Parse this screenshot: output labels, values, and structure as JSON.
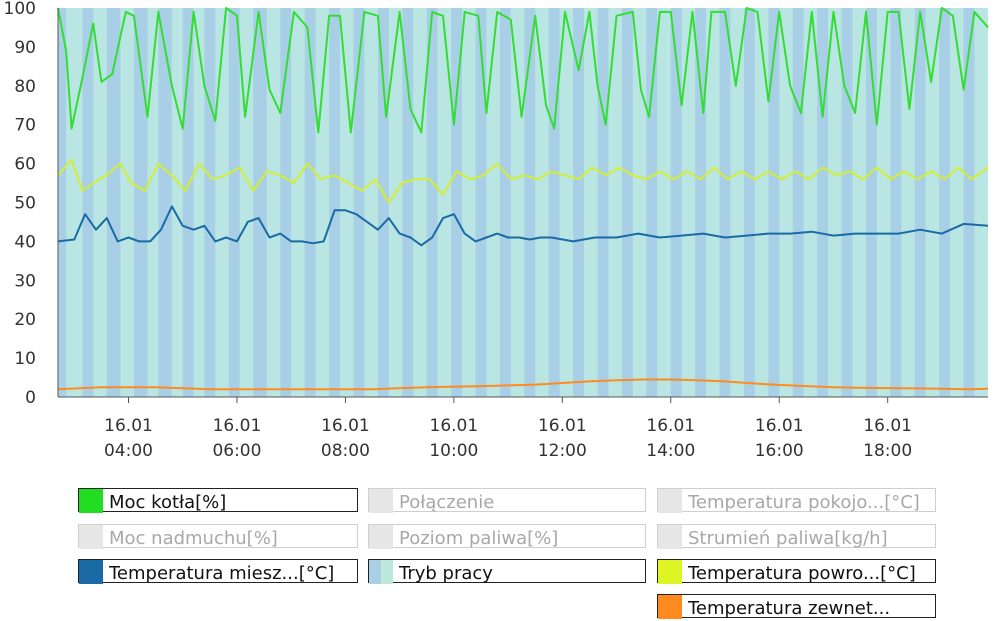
{
  "chart_data": {
    "type": "line",
    "ylim": [
      0,
      100
    ],
    "yticks": [
      0,
      10,
      20,
      30,
      40,
      50,
      60,
      70,
      80,
      90,
      100
    ],
    "xlim": [
      2.7,
      19.85
    ],
    "xticks": [
      {
        "x": 4,
        "date": "16.01",
        "time": "04:00"
      },
      {
        "x": 6,
        "date": "16.01",
        "time": "06:00"
      },
      {
        "x": 8,
        "date": "16.01",
        "time": "08:00"
      },
      {
        "x": 10,
        "date": "16.01",
        "time": "10:00"
      },
      {
        "x": 12,
        "date": "16.01",
        "time": "12:00"
      },
      {
        "x": 14,
        "date": "16.01",
        "time": "14:00"
      },
      {
        "x": 16,
        "date": "16.01",
        "time": "16:00"
      },
      {
        "x": 18,
        "date": "16.01",
        "time": "18:00"
      }
    ],
    "grid": false,
    "series": [
      {
        "name": "Moc kotła[%]",
        "color": "#33dd33",
        "x": [
          2.7,
          2.85,
          2.95,
          3.15,
          3.35,
          3.5,
          3.7,
          3.95,
          4.1,
          4.35,
          4.55,
          4.8,
          5.0,
          5.2,
          5.4,
          5.6,
          5.8,
          6.0,
          6.15,
          6.4,
          6.6,
          6.8,
          7.05,
          7.3,
          7.5,
          7.7,
          7.9,
          8.1,
          8.35,
          8.6,
          8.75,
          9.0,
          9.2,
          9.4,
          9.6,
          9.8,
          10.0,
          10.2,
          10.45,
          10.6,
          10.8,
          11.05,
          11.25,
          11.5,
          11.7,
          11.85,
          12.05,
          12.3,
          12.5,
          12.65,
          12.8,
          13.0,
          13.3,
          13.45,
          13.6,
          13.8,
          14.0,
          14.2,
          14.4,
          14.6,
          14.75,
          15.0,
          15.2,
          15.4,
          15.6,
          15.8,
          16.0,
          16.2,
          16.4,
          16.6,
          16.8,
          17.0,
          17.2,
          17.4,
          17.6,
          17.8,
          18.0,
          18.2,
          18.4,
          18.6,
          18.8,
          19.0,
          19.2,
          19.4,
          19.6,
          19.85
        ],
        "y": [
          100,
          89,
          69,
          82,
          96,
          81,
          83,
          99,
          98,
          72,
          99,
          80,
          69,
          99,
          80,
          71,
          100,
          98,
          72,
          99,
          79,
          73,
          99,
          95,
          68,
          98,
          98,
          68,
          99,
          98,
          72,
          99,
          74,
          68,
          99,
          98,
          70,
          99,
          98,
          73,
          99,
          97,
          72,
          98,
          75,
          69,
          99,
          84,
          99,
          80,
          70,
          98,
          99,
          79,
          72,
          99,
          99,
          75,
          99,
          73,
          99,
          99,
          80,
          100,
          99,
          76,
          99,
          80,
          73,
          99,
          72,
          99,
          80,
          73,
          99,
          70,
          99,
          99,
          74,
          99,
          81,
          100,
          98,
          79,
          99,
          95
        ]
      },
      {
        "name": "Temperatura miesz...[°C]",
        "color": "#1a6aa6",
        "x": [
          2.7,
          3.0,
          3.2,
          3.4,
          3.6,
          3.8,
          4.0,
          4.2,
          4.4,
          4.6,
          4.8,
          5.0,
          5.2,
          5.4,
          5.6,
          5.8,
          6.0,
          6.2,
          6.4,
          6.6,
          6.8,
          7.0,
          7.2,
          7.4,
          7.6,
          7.8,
          8.0,
          8.2,
          8.4,
          8.6,
          8.8,
          9.0,
          9.2,
          9.4,
          9.6,
          9.8,
          10.0,
          10.2,
          10.4,
          10.6,
          10.8,
          11.0,
          11.2,
          11.4,
          11.6,
          11.8,
          12.2,
          12.6,
          13.0,
          13.4,
          13.8,
          14.2,
          14.6,
          15.0,
          15.4,
          15.8,
          16.2,
          16.6,
          17.0,
          17.4,
          17.8,
          18.2,
          18.6,
          19.0,
          19.4,
          19.85
        ],
        "y": [
          40,
          40.5,
          47,
          43,
          46,
          40,
          41,
          40,
          40,
          43,
          49,
          44,
          43,
          44,
          40,
          41,
          40,
          45,
          46,
          41,
          42,
          40,
          40,
          39.5,
          40,
          48,
          48,
          47,
          45,
          43,
          46,
          42,
          41,
          39,
          41,
          46,
          47,
          42,
          40,
          41,
          42,
          41,
          41,
          40.5,
          41,
          41,
          40,
          41,
          41,
          42,
          41,
          41.5,
          42,
          41,
          41.5,
          42,
          42,
          42.5,
          41.5,
          42,
          42,
          42,
          43,
          42,
          44.5,
          44
        ]
      },
      {
        "name": "Temperatura powro...[°C]",
        "color": "#d4ee33",
        "x": [
          2.7,
          2.95,
          3.15,
          3.35,
          3.6,
          3.85,
          4.05,
          4.3,
          4.55,
          4.8,
          5.05,
          5.3,
          5.55,
          5.8,
          6.05,
          6.3,
          6.55,
          6.8,
          7.05,
          7.3,
          7.55,
          7.8,
          8.05,
          8.3,
          8.55,
          8.8,
          9.05,
          9.3,
          9.55,
          9.8,
          10.05,
          10.3,
          10.55,
          10.8,
          11.05,
          11.3,
          11.55,
          11.8,
          12.05,
          12.3,
          12.55,
          12.8,
          13.05,
          13.3,
          13.55,
          13.8,
          14.05,
          14.3,
          14.55,
          14.8,
          15.05,
          15.3,
          15.55,
          15.8,
          16.05,
          16.3,
          16.55,
          16.8,
          17.05,
          17.3,
          17.55,
          17.8,
          18.05,
          18.3,
          18.55,
          18.8,
          19.05,
          19.3,
          19.55,
          19.85
        ],
        "y": [
          57,
          61,
          53,
          55,
          57,
          60,
          55,
          53,
          60,
          57,
          53,
          60,
          56,
          57,
          59,
          53,
          58,
          57,
          55,
          60,
          56,
          57,
          55,
          53,
          56,
          50,
          55,
          56,
          56,
          52,
          58,
          56,
          57,
          60,
          56,
          57,
          56,
          58,
          57,
          56,
          59,
          57,
          59,
          57,
          56,
          58,
          56,
          58,
          56,
          59,
          56,
          58,
          56,
          58,
          56,
          58,
          56,
          59,
          57,
          58,
          56,
          59,
          56,
          58,
          56,
          58,
          56,
          59,
          56,
          59
        ]
      },
      {
        "name": "Temperatura zewnet...",
        "color": "#ff8a1e",
        "x": [
          2.7,
          3.5,
          4.5,
          5.5,
          6.5,
          7.5,
          8.5,
          9.5,
          10.5,
          11.5,
          12.5,
          13.0,
          13.5,
          14.0,
          14.5,
          15.0,
          15.5,
          16.0,
          16.5,
          17.0,
          17.5,
          18.0,
          18.5,
          19.0,
          19.5,
          19.85
        ],
        "y": [
          2,
          2.5,
          2.5,
          2,
          2,
          2,
          2,
          2.5,
          2.8,
          3.2,
          4,
          4.3,
          4.5,
          4.5,
          4.3,
          4,
          3.5,
          3.1,
          2.8,
          2.5,
          2.4,
          2.3,
          2.2,
          2.1,
          2.0,
          2.1
        ]
      },
      {
        "name": "Tryb pracy",
        "color": "#bfe4ea",
        "bands": [
          [
            2.85,
            3.15
          ],
          [
            3.35,
            3.6
          ],
          [
            3.85,
            4.1
          ],
          [
            4.35,
            4.55
          ],
          [
            4.8,
            5.0
          ],
          [
            5.2,
            5.4
          ],
          [
            5.6,
            5.85
          ],
          [
            6.05,
            6.3
          ],
          [
            6.55,
            6.8
          ],
          [
            7.0,
            7.25
          ],
          [
            7.45,
            7.7
          ],
          [
            7.9,
            8.15
          ],
          [
            8.35,
            8.6
          ],
          [
            8.8,
            9.05
          ],
          [
            9.25,
            9.5
          ],
          [
            9.7,
            9.95
          ],
          [
            10.15,
            10.4
          ],
          [
            10.6,
            10.85
          ],
          [
            11.05,
            11.3
          ],
          [
            11.5,
            11.75
          ],
          [
            11.95,
            12.2
          ],
          [
            12.4,
            12.65
          ],
          [
            12.85,
            13.1
          ],
          [
            13.3,
            13.55
          ],
          [
            13.75,
            14.0
          ],
          [
            14.2,
            14.45
          ],
          [
            14.65,
            14.9
          ],
          [
            15.1,
            15.35
          ],
          [
            15.55,
            15.8
          ],
          [
            16.0,
            16.25
          ],
          [
            16.45,
            16.7
          ],
          [
            16.9,
            17.15
          ],
          [
            17.35,
            17.6
          ],
          [
            17.8,
            18.05
          ],
          [
            18.25,
            18.5
          ],
          [
            18.7,
            18.95
          ],
          [
            19.15,
            19.4
          ],
          [
            19.6,
            19.85
          ]
        ]
      }
    ]
  },
  "legend": {
    "items": [
      {
        "label": "Moc kotła[%]",
        "color": "#22dd22",
        "active": true
      },
      {
        "label": "Połączenie",
        "color": "#e6e6e6",
        "active": false
      },
      {
        "label": "Temperatura pokojo...[°C]",
        "color": "#e6e6e6",
        "active": false
      },
      {
        "label": "Moc nadmuchu[%]",
        "color": "#e6e6e6",
        "active": false
      },
      {
        "label": "Poziom paliwa[%]",
        "color": "#e6e6e6",
        "active": false
      },
      {
        "label": "Strumień paliwa[kg/h]",
        "color": "#e6e6e6",
        "active": false
      },
      {
        "label": "Temperatura miesz...[°C]",
        "color": "#1a6aa6",
        "active": true
      },
      {
        "label": "Tryb pracy",
        "color": "#a9cfe6",
        "active": true
      },
      {
        "label": "Temperatura powro...[°C]",
        "color": "#ddf522",
        "active": true
      },
      {
        "label": "Temperatura zewnet...",
        "color": "#ff8a1e",
        "active": true
      }
    ]
  }
}
